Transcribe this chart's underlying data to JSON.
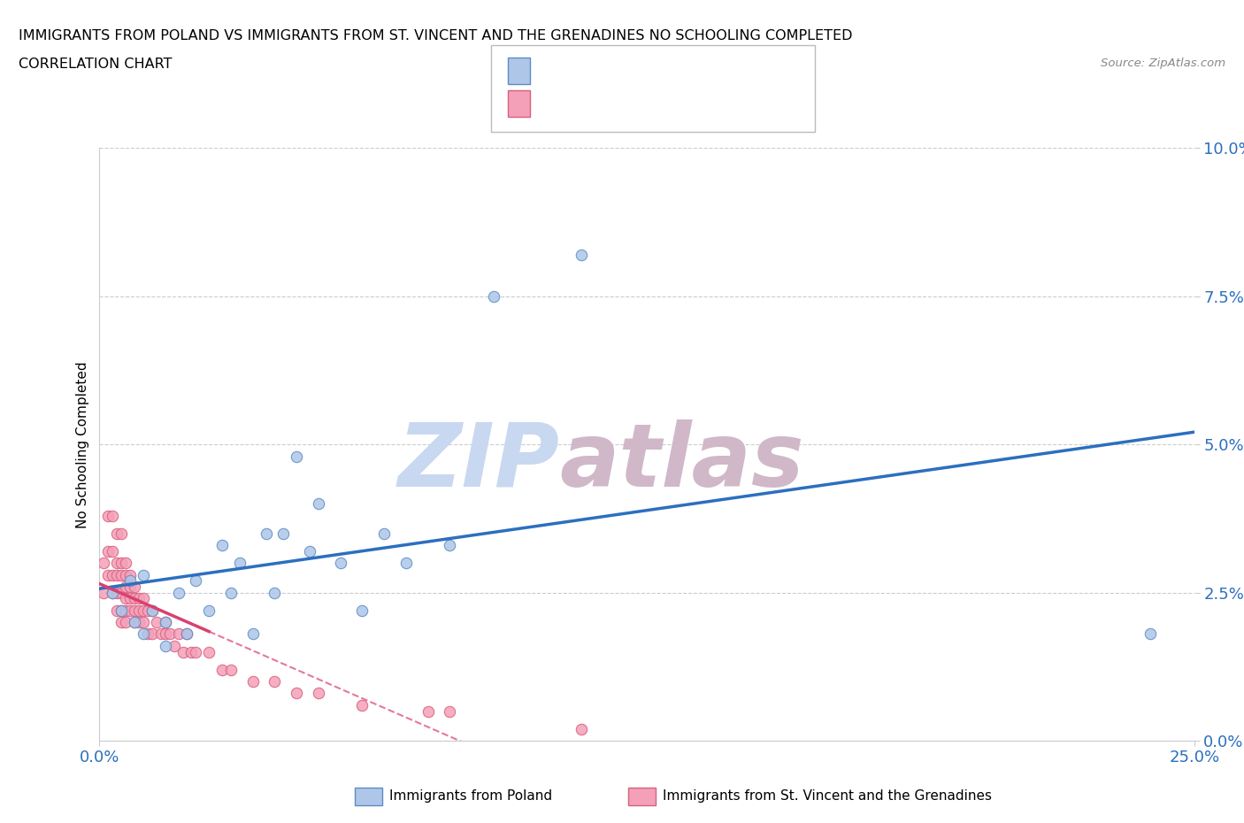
{
  "title_line1": "IMMIGRANTS FROM POLAND VS IMMIGRANTS FROM ST. VINCENT AND THE GRENADINES NO SCHOOLING COMPLETED",
  "title_line2": "CORRELATION CHART",
  "source_text": "Source: ZipAtlas.com",
  "ylabel": "No Schooling Completed",
  "xlim": [
    0.0,
    0.25
  ],
  "ylim": [
    0.0,
    0.1
  ],
  "ytick_values": [
    0.0,
    0.025,
    0.05,
    0.075,
    0.1
  ],
  "ytick_labels": [
    "0.0%",
    "2.5%",
    "5.0%",
    "7.5%",
    "10.0%"
  ],
  "xtick_values": [
    0.0,
    0.25
  ],
  "xtick_labels": [
    "0.0%",
    "25.0%"
  ],
  "poland_color": "#aec6e8",
  "poland_edge_color": "#5b8ec4",
  "svg_color": "#f4a0b8",
  "svg_edge_color": "#d96080",
  "poland_line_color": "#2c6fbe",
  "svg_line_color": "#d94070",
  "watermark_zip": "#c8d8f0",
  "watermark_atlas": "#d0b8c8",
  "legend1_label": "Immigrants from Poland",
  "legend2_label": "Immigrants from St. Vincent and the Grenadines",
  "poland_scatter_x": [
    0.003,
    0.005,
    0.007,
    0.008,
    0.01,
    0.01,
    0.012,
    0.015,
    0.015,
    0.018,
    0.02,
    0.022,
    0.025,
    0.028,
    0.03,
    0.032,
    0.035,
    0.038,
    0.04,
    0.042,
    0.045,
    0.048,
    0.05,
    0.055,
    0.06,
    0.065,
    0.07,
    0.08,
    0.09,
    0.11,
    0.24
  ],
  "poland_scatter_y": [
    0.025,
    0.022,
    0.027,
    0.02,
    0.018,
    0.028,
    0.022,
    0.02,
    0.016,
    0.025,
    0.018,
    0.027,
    0.022,
    0.033,
    0.025,
    0.03,
    0.018,
    0.035,
    0.025,
    0.035,
    0.048,
    0.032,
    0.04,
    0.03,
    0.022,
    0.035,
    0.03,
    0.033,
    0.075,
    0.082,
    0.018
  ],
  "svg_scatter_x": [
    0.001,
    0.001,
    0.002,
    0.002,
    0.002,
    0.003,
    0.003,
    0.003,
    0.003,
    0.004,
    0.004,
    0.004,
    0.004,
    0.004,
    0.005,
    0.005,
    0.005,
    0.005,
    0.005,
    0.005,
    0.006,
    0.006,
    0.006,
    0.006,
    0.006,
    0.006,
    0.007,
    0.007,
    0.007,
    0.007,
    0.008,
    0.008,
    0.008,
    0.008,
    0.009,
    0.009,
    0.009,
    0.01,
    0.01,
    0.01,
    0.011,
    0.011,
    0.012,
    0.012,
    0.013,
    0.014,
    0.015,
    0.015,
    0.016,
    0.017,
    0.018,
    0.019,
    0.02,
    0.021,
    0.022,
    0.025,
    0.028,
    0.03,
    0.035,
    0.04,
    0.045,
    0.05,
    0.06,
    0.075,
    0.08,
    0.11
  ],
  "svg_scatter_y": [
    0.03,
    0.025,
    0.038,
    0.032,
    0.028,
    0.038,
    0.032,
    0.028,
    0.025,
    0.035,
    0.03,
    0.028,
    0.025,
    0.022,
    0.035,
    0.03,
    0.028,
    0.025,
    0.022,
    0.02,
    0.03,
    0.028,
    0.026,
    0.024,
    0.022,
    0.02,
    0.028,
    0.026,
    0.024,
    0.022,
    0.026,
    0.024,
    0.022,
    0.02,
    0.024,
    0.022,
    0.02,
    0.024,
    0.022,
    0.02,
    0.022,
    0.018,
    0.022,
    0.018,
    0.02,
    0.018,
    0.02,
    0.018,
    0.018,
    0.016,
    0.018,
    0.015,
    0.018,
    0.015,
    0.015,
    0.015,
    0.012,
    0.012,
    0.01,
    0.01,
    0.008,
    0.008,
    0.006,
    0.005,
    0.005,
    0.002
  ]
}
